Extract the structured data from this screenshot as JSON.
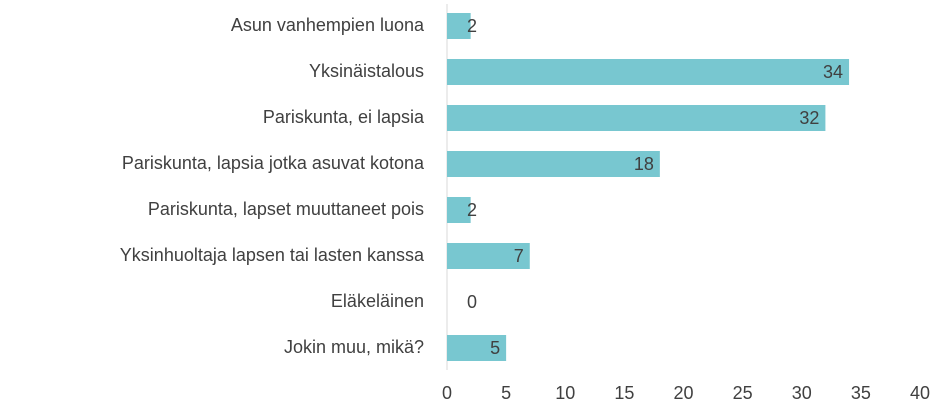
{
  "chart_data": {
    "type": "bar",
    "orientation": "horizontal",
    "categories": [
      "Asun vanhempien luona",
      "Yksinäistalous",
      "Pariskunta, ei lapsia",
      "Pariskunta, lapsia jotka asuvat kotona",
      "Pariskunta, lapset muuttaneet pois",
      "Yksinhuoltaja lapsen tai lasten kanssa",
      "Eläkeläinen",
      "Jokin muu, mikä?"
    ],
    "values": [
      2,
      34,
      32,
      18,
      2,
      7,
      0,
      5
    ],
    "color": "#78c7d0",
    "xlim": [
      0,
      40
    ],
    "xticks": [
      0,
      5,
      10,
      15,
      20,
      25,
      30,
      35,
      40
    ],
    "grid": false
  }
}
